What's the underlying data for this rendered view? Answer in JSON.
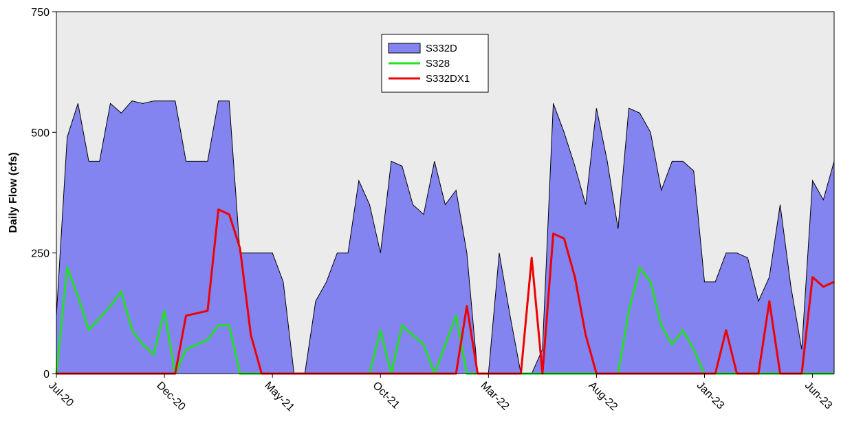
{
  "chart_data": {
    "type": "area-line",
    "y_label": "Daily Flow (cfs)",
    "x": [
      0,
      0.5,
      1,
      1.5,
      2,
      2.5,
      3,
      3.5,
      4,
      4.5,
      5,
      5.5,
      6,
      6.5,
      7,
      7.5,
      8,
      8.5,
      9,
      9.5,
      10,
      10.5,
      11,
      11.5,
      12,
      12.5,
      13,
      13.5,
      14,
      14.5,
      15,
      15.5,
      16,
      16.5,
      17,
      17.5,
      18,
      18.5,
      19,
      19.5,
      20,
      20.5,
      21,
      21.5,
      22,
      22.5,
      23,
      23.5,
      24,
      24.5,
      25,
      25.5,
      26,
      26.5,
      27,
      27.5,
      28,
      28.5,
      29,
      29.5,
      30,
      30.5,
      31,
      31.5,
      32,
      32.5,
      33,
      33.5,
      34,
      34.5,
      35,
      35.5,
      36
    ],
    "xlim": [
      0,
      36
    ],
    "xticks": [
      {
        "value": 0,
        "label": "Jul-20"
      },
      {
        "value": 5,
        "label": "Dec-20"
      },
      {
        "value": 10,
        "label": "May-21"
      },
      {
        "value": 15,
        "label": "Oct-21"
      },
      {
        "value": 20,
        "label": "Mar-22"
      },
      {
        "value": 25,
        "label": "Aug-22"
      },
      {
        "value": 30,
        "label": "Jan-23"
      },
      {
        "value": 35,
        "label": "Jun-23"
      }
    ],
    "ylim": [
      0,
      750
    ],
    "yticks": [
      0,
      250,
      500,
      750
    ],
    "legend_position": "top",
    "series": [
      {
        "name": "S332D",
        "style": "area",
        "color": "#8484f0",
        "values": [
          120,
          490,
          560,
          440,
          440,
          560,
          540,
          565,
          560,
          565,
          565,
          565,
          440,
          440,
          440,
          565,
          565,
          250,
          250,
          250,
          250,
          190,
          0,
          0,
          150,
          190,
          250,
          250,
          400,
          350,
          250,
          440,
          430,
          350,
          330,
          440,
          350,
          380,
          250,
          0,
          0,
          250,
          120,
          0,
          0,
          50,
          560,
          500,
          430,
          350,
          550,
          440,
          300,
          550,
          540,
          500,
          380,
          440,
          440,
          420,
          190,
          190,
          250,
          250,
          240,
          150,
          200,
          350,
          180,
          50,
          400,
          360,
          440
        ]
      },
      {
        "name": "S328",
        "style": "line",
        "color": "#22e022",
        "values": [
          0,
          220,
          160,
          90,
          115,
          140,
          170,
          90,
          60,
          40,
          130,
          0,
          50,
          60,
          70,
          100,
          100,
          0,
          0,
          0,
          0,
          0,
          0,
          0,
          0,
          0,
          0,
          0,
          0,
          0,
          90,
          0,
          100,
          80,
          60,
          0,
          60,
          120,
          0,
          0,
          0,
          0,
          0,
          0,
          0,
          0,
          0,
          0,
          0,
          0,
          0,
          0,
          0,
          130,
          220,
          190,
          100,
          60,
          90,
          50,
          0,
          0,
          0,
          0,
          0,
          0,
          0,
          0,
          0,
          0,
          0,
          0,
          0
        ]
      },
      {
        "name": "S332DX1",
        "style": "line",
        "color": "#ee0000",
        "values": [
          0,
          0,
          0,
          0,
          0,
          0,
          0,
          0,
          0,
          0,
          0,
          0,
          120,
          125,
          130,
          340,
          330,
          260,
          80,
          0,
          0,
          0,
          0,
          0,
          0,
          0,
          0,
          0,
          0,
          0,
          0,
          0,
          0,
          0,
          0,
          0,
          0,
          0,
          140,
          0,
          0,
          0,
          0,
          0,
          240,
          0,
          290,
          280,
          200,
          80,
          0,
          0,
          0,
          0,
          0,
          0,
          0,
          0,
          0,
          0,
          0,
          0,
          90,
          0,
          0,
          0,
          150,
          0,
          0,
          0,
          200,
          180,
          190
        ]
      }
    ]
  }
}
